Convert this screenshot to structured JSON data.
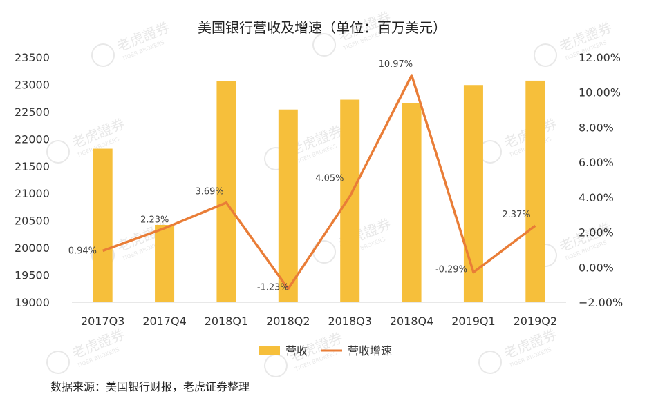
{
  "chart_data": {
    "type": "bar+line",
    "title": "美国银行营收及增速（单位：百万美元）",
    "categories": [
      "2017Q3",
      "2017Q4",
      "2018Q1",
      "2018Q2",
      "2018Q3",
      "2018Q4",
      "2019Q1",
      "2019Q2"
    ],
    "series": [
      {
        "name": "营收",
        "type": "bar",
        "axis": "left",
        "color": "#F6BF3B",
        "values": [
          21820,
          20420,
          23060,
          22540,
          22720,
          22660,
          22990,
          23070
        ]
      },
      {
        "name": "营收增速",
        "type": "line",
        "axis": "right",
        "color": "#E97D37",
        "values": [
          0.94,
          2.23,
          3.69,
          -1.23,
          4.05,
          10.97,
          -0.29,
          2.37
        ],
        "labels": [
          "0.94%",
          "2.23%",
          "3.69%",
          "-1.23%",
          "4.05%",
          "10.97%",
          "-0.29%",
          "2.37%"
        ]
      }
    ],
    "left_axis": {
      "ylim": [
        19000,
        23500
      ],
      "ticks": [
        "23500",
        "23000",
        "22500",
        "22000",
        "21500",
        "21000",
        "20500",
        "20000",
        "19500",
        "19000"
      ]
    },
    "right_axis": {
      "ylim": [
        -2,
        12
      ],
      "ticks": [
        "12.00%",
        "10.00%",
        "8.00%",
        "6.00%",
        "4.00%",
        "2.00%",
        "0.00%",
        "−2.00%"
      ]
    },
    "legend_position": "bottom",
    "grid": false
  },
  "source_text": "数据来源：美国银行财报，老虎证券整理",
  "watermark": {
    "brand": "老虎證券",
    "sub": "TIGER BROKERS"
  }
}
